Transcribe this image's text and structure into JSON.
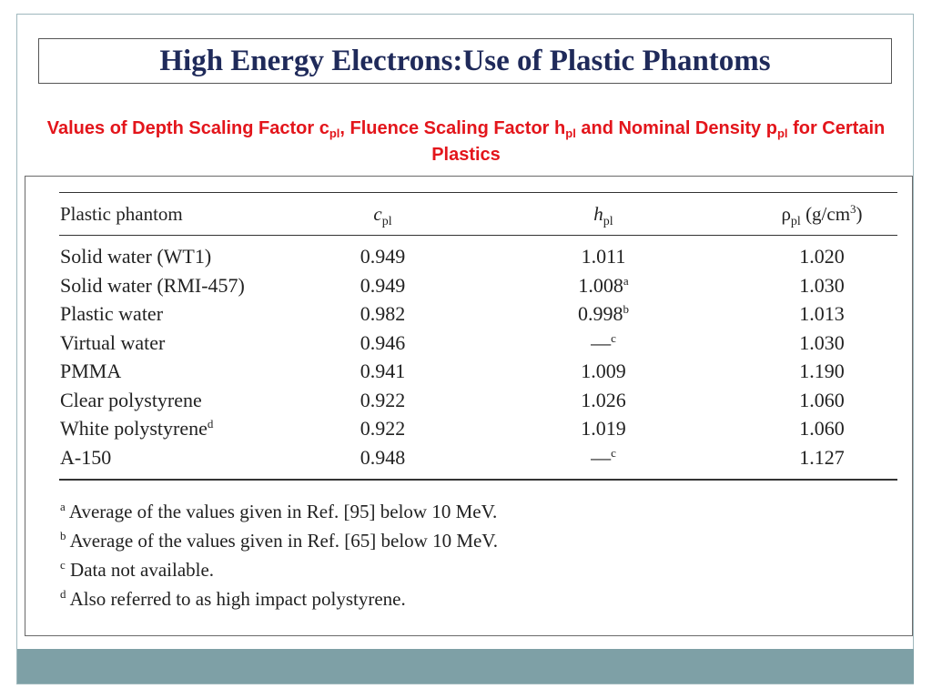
{
  "slide": {
    "title": "High Energy Electrons:Use of Plastic Phantoms",
    "subtitle": {
      "p1": "Values of Depth Scaling Factor c",
      "s1": "pl",
      "p2": ", Fluence Scaling Factor h",
      "s2": "pl",
      "p3": " and Nominal Density p",
      "s3": "pl",
      "p4": " for Certain Plastics"
    }
  },
  "colors": {
    "title": "#1f2a5a",
    "subtitle": "#e3151b",
    "footer_bar": "#7ea0a6"
  },
  "table": {
    "headers": {
      "col0": "Plastic phantom",
      "col1_base": "c",
      "col1_sub": "pl",
      "col2_base": "h",
      "col2_sub": "pl",
      "col3_base": "ρ",
      "col3_sub": "pl",
      "col3_unit": " (g/cm",
      "col3_unit_sup": "3",
      "col3_close": ")"
    },
    "rows": [
      {
        "name": "Solid water (WT1)",
        "name_sup": "",
        "c": "0.949",
        "h": "1.011",
        "h_sup": "",
        "rho": "1.020"
      },
      {
        "name": "Solid water (RMI-457)",
        "name_sup": "",
        "c": "0.949",
        "h": "1.008",
        "h_sup": "a",
        "rho": "1.030"
      },
      {
        "name": "Plastic water",
        "name_sup": "",
        "c": "0.982",
        "h": "0.998",
        "h_sup": "b",
        "rho": "1.013"
      },
      {
        "name": "Virtual water",
        "name_sup": "",
        "c": "0.946",
        "h": "—",
        "h_sup": "c",
        "rho": "1.030"
      },
      {
        "name": "PMMA",
        "name_sup": "",
        "c": "0.941",
        "h": "1.009",
        "h_sup": "",
        "rho": "1.190"
      },
      {
        "name": "Clear polystyrene",
        "name_sup": "",
        "c": "0.922",
        "h": "1.026",
        "h_sup": "",
        "rho": "1.060"
      },
      {
        "name": "White polystyrene",
        "name_sup": "d",
        "c": "0.922",
        "h": "1.019",
        "h_sup": "",
        "rho": "1.060"
      },
      {
        "name": "A-150",
        "name_sup": "",
        "c": "0.948",
        "h": "—",
        "h_sup": "c",
        "rho": "1.127"
      }
    ],
    "footnotes": [
      {
        "mark": "a",
        "text": " Average of the values given in Ref. [95] below 10 MeV."
      },
      {
        "mark": "b",
        "text": " Average of the values given in Ref. [65] below 10 MeV."
      },
      {
        "mark": "c",
        "text": " Data not available."
      },
      {
        "mark": "d",
        "text": " Also referred to as high impact polystyrene."
      }
    ]
  }
}
